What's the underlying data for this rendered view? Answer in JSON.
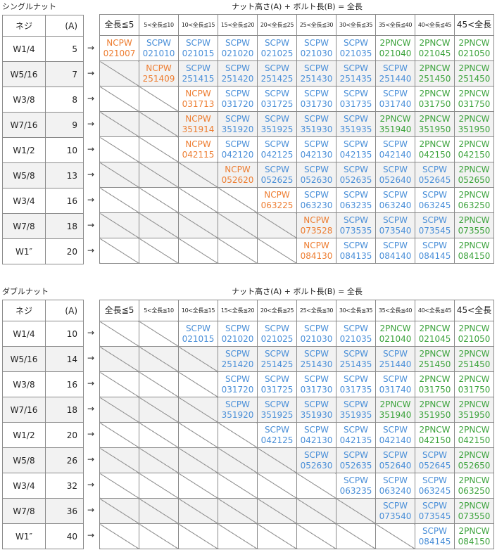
{
  "sections": [
    {
      "title": "シングルナット",
      "header_title": "ナット高さ(A) + ボルト長(B) = 全長",
      "left_headers": [
        "ネジ",
        "(A)"
      ],
      "col_headers": [
        "全長≦5",
        "5<全長≦10",
        "10<全長≦15",
        "15<全長≦20",
        "20<全長≦25",
        "25<全長≦30",
        "30<全長≦35",
        "35<全長≦40",
        "40<全長≦45",
        "45<全長"
      ],
      "arrow": "→",
      "rows": [
        {
          "neji": "W1/4",
          "a": "5",
          "cells": [
            {
              "t": "NCPW",
              "c": "021007"
            },
            {
              "t": "SCPW",
              "c": "021010"
            },
            {
              "t": "SCPW",
              "c": "021015"
            },
            {
              "t": "SCPW",
              "c": "021020"
            },
            {
              "t": "SCPW",
              "c": "021025"
            },
            {
              "t": "SCPW",
              "c": "021030"
            },
            {
              "t": "SCPW",
              "c": "021035"
            },
            {
              "t": "2PNCW",
              "c": "021040"
            },
            {
              "t": "2PNCW",
              "c": "021045"
            },
            {
              "t": "2PNCW",
              "c": "021050"
            }
          ]
        },
        {
          "neji": "W5/16",
          "a": "7",
          "cells": [
            null,
            {
              "t": "NCPW",
              "c": "251409"
            },
            {
              "t": "SCPW",
              "c": "251415"
            },
            {
              "t": "SCPW",
              "c": "251420"
            },
            {
              "t": "SCPW",
              "c": "251425"
            },
            {
              "t": "SCPW",
              "c": "251430"
            },
            {
              "t": "SCPW",
              "c": "251435"
            },
            {
              "t": "SCPW",
              "c": "251440"
            },
            {
              "t": "2PNCW",
              "c": "251450"
            },
            {
              "t": "2PNCW",
              "c": "251450"
            }
          ]
        },
        {
          "neji": "W3/8",
          "a": "8",
          "cells": [
            null,
            null,
            {
              "t": "NCPW",
              "c": "031713"
            },
            {
              "t": "SCPW",
              "c": "031720"
            },
            {
              "t": "SCPW",
              "c": "031725"
            },
            {
              "t": "SCPW",
              "c": "031730"
            },
            {
              "t": "SCPW",
              "c": "031735"
            },
            {
              "t": "SCPW",
              "c": "031740"
            },
            {
              "t": "2PNCW",
              "c": "031750"
            },
            {
              "t": "2PNCW",
              "c": "031750"
            }
          ]
        },
        {
          "neji": "W7/16",
          "a": "9",
          "cells": [
            null,
            null,
            {
              "t": "NCPW",
              "c": "351914"
            },
            {
              "t": "SCPW",
              "c": "351920"
            },
            {
              "t": "SCPW",
              "c": "351925"
            },
            {
              "t": "SCPW",
              "c": "351930"
            },
            {
              "t": "SCPW",
              "c": "351935"
            },
            {
              "t": "2PNCW",
              "c": "351940"
            },
            {
              "t": "2PNCW",
              "c": "351950"
            },
            {
              "t": "2PNCW",
              "c": "351950"
            }
          ]
        },
        {
          "neji": "W1/2",
          "a": "10",
          "cells": [
            null,
            null,
            {
              "t": "NCPW",
              "c": "042115"
            },
            {
              "t": "SCPW",
              "c": "042120"
            },
            {
              "t": "SCPW",
              "c": "042125"
            },
            {
              "t": "SCPW",
              "c": "042130"
            },
            {
              "t": "SCPW",
              "c": "042135"
            },
            {
              "t": "SCPW",
              "c": "042140"
            },
            {
              "t": "2PNCW",
              "c": "042150"
            },
            {
              "t": "2PNCW",
              "c": "042150"
            }
          ]
        },
        {
          "neji": "W5/8",
          "a": "13",
          "cells": [
            null,
            null,
            null,
            {
              "t": "NCPW",
              "c": "052620"
            },
            {
              "t": "SCPW",
              "c": "052625"
            },
            {
              "t": "SCPW",
              "c": "052630"
            },
            {
              "t": "SCPW",
              "c": "052635"
            },
            {
              "t": "SCPW",
              "c": "052640"
            },
            {
              "t": "SCPW",
              "c": "052645"
            },
            {
              "t": "2PNCW",
              "c": "052650"
            }
          ]
        },
        {
          "neji": "W3/4",
          "a": "16",
          "cells": [
            null,
            null,
            null,
            null,
            {
              "t": "NCPW",
              "c": "063225"
            },
            {
              "t": "SCPW",
              "c": "063230"
            },
            {
              "t": "SCPW",
              "c": "063235"
            },
            {
              "t": "SCPW",
              "c": "063240"
            },
            {
              "t": "SCPW",
              "c": "063245"
            },
            {
              "t": "2PNCW",
              "c": "063250"
            }
          ]
        },
        {
          "neji": "W7/8",
          "a": "18",
          "cells": [
            null,
            null,
            null,
            null,
            null,
            {
              "t": "NCPW",
              "c": "073528"
            },
            {
              "t": "SCPW",
              "c": "073535"
            },
            {
              "t": "SCPW",
              "c": "073540"
            },
            {
              "t": "SCPW",
              "c": "073545"
            },
            {
              "t": "2PNCW",
              "c": "073550"
            }
          ]
        },
        {
          "neji": "W1″",
          "a": "20",
          "cells": [
            null,
            null,
            null,
            null,
            null,
            {
              "t": "NCPW",
              "c": "084130"
            },
            {
              "t": "SCPW",
              "c": "084135"
            },
            {
              "t": "SCPW",
              "c": "084140"
            },
            {
              "t": "SCPW",
              "c": "084145"
            },
            {
              "t": "2PNCW",
              "c": "084150"
            }
          ]
        }
      ]
    },
    {
      "title": "ダブルナット",
      "header_title": "ナット高さ(A) + ボルト長(B) = 全長",
      "left_headers": [
        "ネジ",
        "(A)"
      ],
      "col_headers": [
        "全長≦5",
        "5<全長≦10",
        "10<全長≦15",
        "15<全長≦20",
        "20<全長≦25",
        "25<全長≦30",
        "30<全長≦35",
        "35<全長≦40",
        "40<全長≦45",
        "45<全長"
      ],
      "arrow": "→",
      "rows": [
        {
          "neji": "W1/4",
          "a": "10",
          "cells": [
            null,
            null,
            {
              "t": "SCPW",
              "c": "021015"
            },
            {
              "t": "SCPW",
              "c": "021020"
            },
            {
              "t": "SCPW",
              "c": "021025"
            },
            {
              "t": "SCPW",
              "c": "021030"
            },
            {
              "t": "SCPW",
              "c": "021035"
            },
            {
              "t": "2PNCW",
              "c": "021040"
            },
            {
              "t": "2PNCW",
              "c": "021045"
            },
            {
              "t": "2PNCW",
              "c": "021050"
            }
          ]
        },
        {
          "neji": "W5/16",
          "a": "14",
          "cells": [
            null,
            null,
            null,
            {
              "t": "SCPW",
              "c": "251420"
            },
            {
              "t": "SCPW",
              "c": "251425"
            },
            {
              "t": "SCPW",
              "c": "251430"
            },
            {
              "t": "SCPW",
              "c": "251435"
            },
            {
              "t": "SCPW",
              "c": "251440"
            },
            {
              "t": "2PNCW",
              "c": "251450"
            },
            {
              "t": "2PNCW",
              "c": "251450"
            }
          ]
        },
        {
          "neji": "W3/8",
          "a": "16",
          "cells": [
            null,
            null,
            null,
            {
              "t": "SCPW",
              "c": "031720"
            },
            {
              "t": "SCPW",
              "c": "031725"
            },
            {
              "t": "SCPW",
              "c": "031730"
            },
            {
              "t": "SCPW",
              "c": "031735"
            },
            {
              "t": "SCPW",
              "c": "031740"
            },
            {
              "t": "2PNCW",
              "c": "031750"
            },
            {
              "t": "2PNCW",
              "c": "031750"
            }
          ]
        },
        {
          "neji": "W7/16",
          "a": "18",
          "cells": [
            null,
            null,
            null,
            {
              "t": "SCPW",
              "c": "351920"
            },
            {
              "t": "SCPW",
              "c": "351925"
            },
            {
              "t": "SCPW",
              "c": "351930"
            },
            {
              "t": "SCPW",
              "c": "351935"
            },
            {
              "t": "2PNCW",
              "c": "351940"
            },
            {
              "t": "2PNCW",
              "c": "351950"
            },
            {
              "t": "2PNCW",
              "c": "351950"
            }
          ]
        },
        {
          "neji": "W1/2",
          "a": "20",
          "cells": [
            null,
            null,
            null,
            null,
            {
              "t": "SCPW",
              "c": "042125"
            },
            {
              "t": "SCPW",
              "c": "042130"
            },
            {
              "t": "SCPW",
              "c": "042135"
            },
            {
              "t": "SCPW",
              "c": "042140"
            },
            {
              "t": "2PNCW",
              "c": "042150"
            },
            {
              "t": "2PNCW",
              "c": "042150"
            }
          ]
        },
        {
          "neji": "W5/8",
          "a": "26",
          "cells": [
            null,
            null,
            null,
            null,
            null,
            {
              "t": "SCPW",
              "c": "052630"
            },
            {
              "t": "SCPW",
              "c": "052635"
            },
            {
              "t": "SCPW",
              "c": "052640"
            },
            {
              "t": "SCPW",
              "c": "052645"
            },
            {
              "t": "2PNCW",
              "c": "052650"
            }
          ]
        },
        {
          "neji": "W3/4",
          "a": "32",
          "cells": [
            null,
            null,
            null,
            null,
            null,
            null,
            {
              "t": "SCPW",
              "c": "063235"
            },
            {
              "t": "SCPW",
              "c": "063240"
            },
            {
              "t": "SCPW",
              "c": "063245"
            },
            {
              "t": "2PNCW",
              "c": "063250"
            }
          ]
        },
        {
          "neji": "W7/8",
          "a": "36",
          "cells": [
            null,
            null,
            null,
            null,
            null,
            null,
            null,
            {
              "t": "SCPW",
              "c": "073540"
            },
            {
              "t": "SCPW",
              "c": "073545"
            },
            {
              "t": "2PNCW",
              "c": "073550"
            }
          ]
        },
        {
          "neji": "W1″",
          "a": "40",
          "cells": [
            null,
            null,
            null,
            null,
            null,
            null,
            null,
            null,
            {
              "t": "SCPW",
              "c": "084145"
            },
            {
              "t": "2PNCW",
              "c": "084150"
            }
          ]
        }
      ]
    }
  ],
  "colors": {
    "NCPW": "#ed7d31",
    "SCPW": "#4a8fd8",
    "2PNCW": "#3ca33c",
    "shade": "#f2f2f2"
  }
}
